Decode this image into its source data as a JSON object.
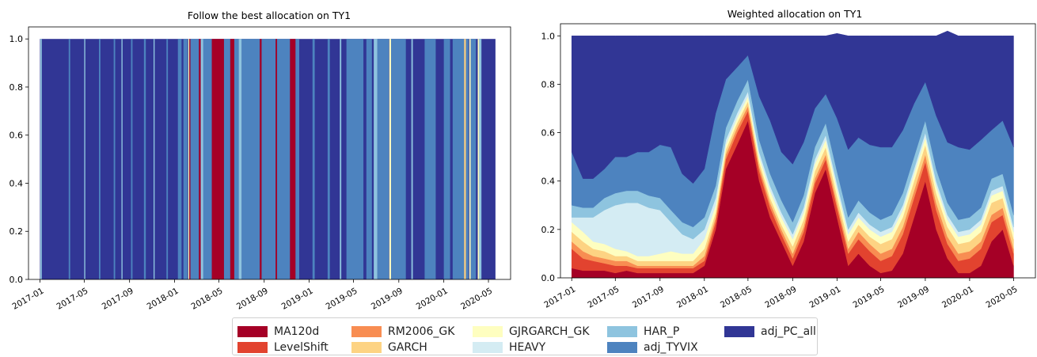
{
  "chart_data": [
    {
      "type": "area",
      "stacked": true,
      "title": "Follow the best allocation on TY1",
      "xlabel": "",
      "ylabel": "",
      "ylim": [
        0,
        1.05
      ],
      "xlim": [
        "2016-12-01",
        "2020-06-30"
      ],
      "x_start": "2017-01-01",
      "x_end": "2020-05-20",
      "x_ticks": [
        "2017-01",
        "2017-05",
        "2017-09",
        "2018-01",
        "2018-05",
        "2018-09",
        "2019-01",
        "2019-05",
        "2019-09",
        "2020-01",
        "2020-05"
      ],
      "y_ticks": [
        "0.0",
        "0.2",
        "0.4",
        "0.6",
        "0.8",
        "1.0"
      ],
      "default_series": "adj_PC_all",
      "selected_periods": [
        {
          "series": "HAR_P",
          "start": "2017-01-02",
          "end": "2017-01-06"
        },
        {
          "series": "adj_TYVIX",
          "start": "2017-03-20",
          "end": "2017-03-24"
        },
        {
          "series": "HAR_P",
          "start": "2017-05-01",
          "end": "2017-05-04"
        },
        {
          "series": "adj_TYVIX",
          "start": "2017-06-10",
          "end": "2017-06-14"
        },
        {
          "series": "adj_TYVIX",
          "start": "2017-07-20",
          "end": "2017-07-24"
        },
        {
          "series": "HAR_P",
          "start": "2017-08-10",
          "end": "2017-08-13"
        },
        {
          "series": "adj_TYVIX",
          "start": "2017-09-05",
          "end": "2017-09-09"
        },
        {
          "series": "adj_TYVIX",
          "start": "2017-10-10",
          "end": "2017-10-15"
        },
        {
          "series": "HAR_P",
          "start": "2017-11-05",
          "end": "2017-11-08"
        },
        {
          "series": "adj_TYVIX",
          "start": "2017-12-10",
          "end": "2017-12-14"
        },
        {
          "series": "adj_TYVIX",
          "start": "2018-01-10",
          "end": "2018-01-20"
        },
        {
          "series": "adj_TYVIX",
          "start": "2018-01-25",
          "end": "2018-02-05"
        },
        {
          "series": "GJRGARCH_GK",
          "start": "2018-02-07",
          "end": "2018-02-10"
        },
        {
          "series": "MA120d",
          "start": "2018-02-10",
          "end": "2018-02-13"
        },
        {
          "series": "adj_TYVIX",
          "start": "2018-02-13",
          "end": "2018-03-08"
        },
        {
          "series": "MA120d",
          "start": "2018-03-08",
          "end": "2018-03-13"
        },
        {
          "series": "HAR_P",
          "start": "2018-03-13",
          "end": "2018-03-20"
        },
        {
          "series": "adj_TYVIX",
          "start": "2018-03-20",
          "end": "2018-04-12"
        },
        {
          "series": "MA120d",
          "start": "2018-04-12",
          "end": "2018-05-15"
        },
        {
          "series": "adj_TYVIX",
          "start": "2018-05-15",
          "end": "2018-06-01"
        },
        {
          "series": "MA120d",
          "start": "2018-06-01",
          "end": "2018-06-12"
        },
        {
          "series": "adj_TYVIX",
          "start": "2018-06-12",
          "end": "2018-06-24"
        },
        {
          "series": "HAR_P",
          "start": "2018-06-24",
          "end": "2018-07-02"
        },
        {
          "series": "adj_TYVIX",
          "start": "2018-07-02",
          "end": "2018-08-20"
        },
        {
          "series": "MA120d",
          "start": "2018-08-20",
          "end": "2018-08-25"
        },
        {
          "series": "adj_TYVIX",
          "start": "2018-08-25",
          "end": "2018-10-02"
        },
        {
          "series": "MA120d",
          "start": "2018-10-02",
          "end": "2018-10-06"
        },
        {
          "series": "adj_TYVIX",
          "start": "2018-10-06",
          "end": "2018-11-10"
        },
        {
          "series": "MA120d",
          "start": "2018-11-10",
          "end": "2018-11-25"
        },
        {
          "series": "adj_TYVIX",
          "start": "2018-11-25",
          "end": "2018-12-05"
        },
        {
          "series": "adj_TYVIX",
          "start": "2019-01-10",
          "end": "2019-01-16"
        },
        {
          "series": "adj_TYVIX",
          "start": "2019-02-20",
          "end": "2019-02-26"
        },
        {
          "series": "HAR_P",
          "start": "2019-03-25",
          "end": "2019-03-29"
        },
        {
          "series": "adj_TYVIX",
          "start": "2019-04-12",
          "end": "2019-05-28"
        },
        {
          "series": "adj_TYVIX",
          "start": "2019-06-05",
          "end": "2019-06-20"
        },
        {
          "series": "HAR_P",
          "start": "2019-06-25",
          "end": "2019-07-05"
        },
        {
          "series": "adj_TYVIX",
          "start": "2019-07-05",
          "end": "2019-08-05"
        },
        {
          "series": "GJRGARCH_GK",
          "start": "2019-08-06",
          "end": "2019-08-11"
        },
        {
          "series": "adj_TYVIX",
          "start": "2019-08-11",
          "end": "2019-09-20"
        },
        {
          "series": "HAR_P",
          "start": "2019-10-05",
          "end": "2019-10-09"
        },
        {
          "series": "adj_TYVIX",
          "start": "2019-11-10",
          "end": "2019-12-10"
        },
        {
          "series": "adj_TYVIX",
          "start": "2020-01-01",
          "end": "2020-01-18"
        },
        {
          "series": "adj_TYVIX",
          "start": "2020-01-25",
          "end": "2020-02-25"
        },
        {
          "series": "GARCH",
          "start": "2020-02-25",
          "end": "2020-03-01"
        },
        {
          "series": "adj_TYVIX",
          "start": "2020-03-01",
          "end": "2020-03-08"
        },
        {
          "series": "GJRGARCH_GK",
          "start": "2020-03-10",
          "end": "2020-03-14"
        },
        {
          "series": "adj_TYVIX",
          "start": "2020-03-14",
          "end": "2020-03-28"
        },
        {
          "series": "GJRGARCH_GK",
          "start": "2020-04-02",
          "end": "2020-04-06"
        },
        {
          "series": "HAR_P",
          "start": "2020-04-06",
          "end": "2020-04-12"
        }
      ]
    },
    {
      "type": "area",
      "stacked": true,
      "title": "Weighted allocation on TY1",
      "xlabel": "",
      "ylabel": "",
      "ylim": [
        0,
        1.05
      ],
      "xlim": [
        "2016-12-01",
        "2020-06-30"
      ],
      "x_ticks": [
        "2017-01",
        "2017-05",
        "2017-09",
        "2018-01",
        "2018-05",
        "2018-09",
        "2019-01",
        "2019-05",
        "2019-09",
        "2020-01",
        "2020-05"
      ],
      "y_ticks": [
        "0.0",
        "0.2",
        "0.4",
        "0.6",
        "0.8",
        "1.0"
      ],
      "x": [
        "2017-01",
        "2017-02",
        "2017-03",
        "2017-04",
        "2017-05",
        "2017-06",
        "2017-07",
        "2017-08",
        "2017-09",
        "2017-10",
        "2017-11",
        "2017-12",
        "2018-01",
        "2018-02",
        "2018-03",
        "2018-04",
        "2018-05",
        "2018-06",
        "2018-07",
        "2018-08",
        "2018-09",
        "2018-10",
        "2018-11",
        "2018-12",
        "2019-01",
        "2019-02",
        "2019-03",
        "2019-04",
        "2019-05",
        "2019-06",
        "2019-07",
        "2019-08",
        "2019-09",
        "2019-10",
        "2019-11",
        "2019-12",
        "2020-01",
        "2020-02",
        "2020-03",
        "2020-04",
        "2020-05"
      ],
      "series": [
        {
          "name": "MA120d",
          "values": [
            0.04,
            0.03,
            0.03,
            0.03,
            0.02,
            0.03,
            0.02,
            0.02,
            0.02,
            0.02,
            0.02,
            0.02,
            0.05,
            0.2,
            0.45,
            0.55,
            0.65,
            0.4,
            0.25,
            0.15,
            0.05,
            0.15,
            0.35,
            0.45,
            0.25,
            0.05,
            0.1,
            0.05,
            0.02,
            0.03,
            0.1,
            0.25,
            0.4,
            0.2,
            0.08,
            0.02,
            0.02,
            0.05,
            0.15,
            0.2,
            0.05
          ]
        },
        {
          "name": "LevelShift",
          "values": [
            0.08,
            0.05,
            0.04,
            0.03,
            0.03,
            0.02,
            0.02,
            0.02,
            0.02,
            0.02,
            0.02,
            0.02,
            0.02,
            0.03,
            0.04,
            0.05,
            0.04,
            0.04,
            0.04,
            0.03,
            0.03,
            0.04,
            0.04,
            0.04,
            0.04,
            0.05,
            0.06,
            0.06,
            0.05,
            0.06,
            0.08,
            0.08,
            0.08,
            0.08,
            0.06,
            0.05,
            0.06,
            0.07,
            0.08,
            0.06,
            0.05
          ]
        },
        {
          "name": "RM2006_GK",
          "values": [
            0.03,
            0.03,
            0.02,
            0.02,
            0.02,
            0.02,
            0.01,
            0.01,
            0.01,
            0.01,
            0.01,
            0.01,
            0.02,
            0.02,
            0.02,
            0.02,
            0.02,
            0.02,
            0.02,
            0.02,
            0.02,
            0.02,
            0.02,
            0.02,
            0.02,
            0.02,
            0.03,
            0.03,
            0.03,
            0.03,
            0.03,
            0.03,
            0.03,
            0.03,
            0.03,
            0.03,
            0.03,
            0.03,
            0.03,
            0.03,
            0.02
          ]
        },
        {
          "name": "GARCH",
          "values": [
            0.04,
            0.04,
            0.03,
            0.03,
            0.02,
            0.02,
            0.02,
            0.02,
            0.02,
            0.02,
            0.02,
            0.02,
            0.03,
            0.02,
            0.02,
            0.02,
            0.02,
            0.02,
            0.02,
            0.02,
            0.03,
            0.03,
            0.03,
            0.03,
            0.03,
            0.03,
            0.03,
            0.03,
            0.04,
            0.04,
            0.04,
            0.04,
            0.04,
            0.04,
            0.04,
            0.04,
            0.04,
            0.04,
            0.05,
            0.04,
            0.04
          ]
        },
        {
          "name": "GJRGARCH_GK",
          "values": [
            0.04,
            0.04,
            0.03,
            0.03,
            0.03,
            0.02,
            0.02,
            0.02,
            0.03,
            0.04,
            0.03,
            0.03,
            0.04,
            0.03,
            0.02,
            0.02,
            0.02,
            0.02,
            0.03,
            0.03,
            0.03,
            0.03,
            0.03,
            0.03,
            0.03,
            0.03,
            0.03,
            0.03,
            0.03,
            0.03,
            0.03,
            0.03,
            0.03,
            0.03,
            0.03,
            0.03,
            0.03,
            0.03,
            0.03,
            0.03,
            0.03
          ]
        },
        {
          "name": "HEAVY",
          "values": [
            0.02,
            0.06,
            0.1,
            0.14,
            0.18,
            0.2,
            0.22,
            0.2,
            0.18,
            0.12,
            0.08,
            0.06,
            0.04,
            0.03,
            0.02,
            0.02,
            0.02,
            0.02,
            0.02,
            0.02,
            0.02,
            0.02,
            0.02,
            0.02,
            0.02,
            0.02,
            0.02,
            0.02,
            0.02,
            0.02,
            0.02,
            0.02,
            0.02,
            0.02,
            0.02,
            0.02,
            0.02,
            0.02,
            0.02,
            0.02,
            0.02
          ]
        },
        {
          "name": "HAR_P",
          "values": [
            0.05,
            0.04,
            0.04,
            0.05,
            0.05,
            0.05,
            0.05,
            0.05,
            0.05,
            0.05,
            0.05,
            0.05,
            0.05,
            0.05,
            0.05,
            0.05,
            0.05,
            0.05,
            0.05,
            0.05,
            0.05,
            0.05,
            0.05,
            0.05,
            0.05,
            0.05,
            0.05,
            0.05,
            0.05,
            0.05,
            0.05,
            0.05,
            0.05,
            0.05,
            0.05,
            0.05,
            0.05,
            0.05,
            0.05,
            0.05,
            0.05
          ]
        },
        {
          "name": "adj_TYVIX",
          "values": [
            0.22,
            0.12,
            0.12,
            0.12,
            0.15,
            0.14,
            0.16,
            0.18,
            0.22,
            0.26,
            0.2,
            0.18,
            0.2,
            0.3,
            0.2,
            0.14,
            0.1,
            0.18,
            0.22,
            0.2,
            0.24,
            0.22,
            0.16,
            0.12,
            0.22,
            0.28,
            0.26,
            0.28,
            0.3,
            0.28,
            0.26,
            0.22,
            0.16,
            0.22,
            0.25,
            0.3,
            0.28,
            0.28,
            0.2,
            0.22,
            0.28
          ]
        },
        {
          "name": "adj_PC_all",
          "values": [
            0.48,
            0.59,
            0.59,
            0.55,
            0.5,
            0.5,
            0.48,
            0.48,
            0.45,
            0.46,
            0.57,
            0.61,
            0.55,
            0.32,
            0.18,
            0.13,
            0.08,
            0.25,
            0.35,
            0.48,
            0.53,
            0.44,
            0.3,
            0.24,
            0.35,
            0.47,
            0.42,
            0.45,
            0.46,
            0.46,
            0.39,
            0.28,
            0.19,
            0.33,
            0.46,
            0.46,
            0.47,
            0.43,
            0.39,
            0.35,
            0.46
          ]
        }
      ]
    }
  ],
  "legend": {
    "items": [
      {
        "label": "MA120d",
        "color": "#a50026"
      },
      {
        "label": "LevelShift",
        "color": "#e2432f"
      },
      {
        "label": "RM2006_GK",
        "color": "#f88d52"
      },
      {
        "label": "GARCH",
        "color": "#fdd383"
      },
      {
        "label": "GJRGARCH_GK",
        "color": "#fefec0"
      },
      {
        "label": "HEAVY",
        "color": "#d4ecf3"
      },
      {
        "label": "HAR_P",
        "color": "#8ec4df"
      },
      {
        "label": "adj_TYVIX",
        "color": "#4d83bf"
      },
      {
        "label": "adj_PC_all",
        "color": "#313695"
      }
    ]
  }
}
